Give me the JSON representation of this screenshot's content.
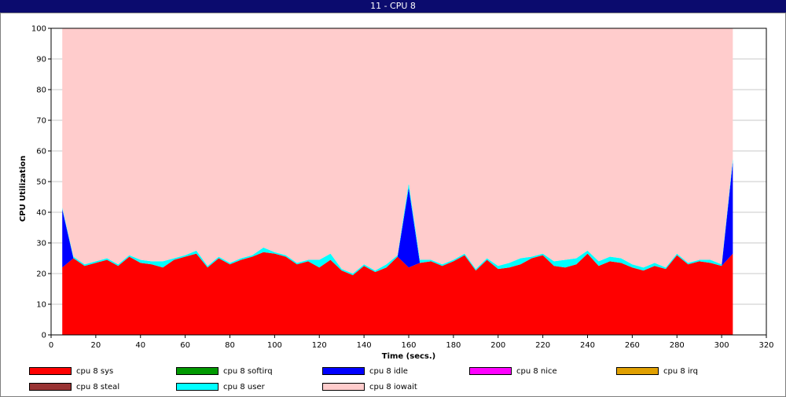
{
  "window": {
    "title": "11 - CPU 8"
  },
  "chart_data": {
    "type": "area",
    "stacked": true,
    "xlabel": "Time (secs.)",
    "ylabel": "CPU Utilization",
    "xlim": [
      0,
      320
    ],
    "ylim": [
      0,
      100
    ],
    "xticks": [
      0,
      20,
      40,
      60,
      80,
      100,
      120,
      140,
      160,
      180,
      200,
      220,
      240,
      260,
      280,
      300,
      320
    ],
    "yticks": [
      0,
      10,
      20,
      30,
      40,
      50,
      60,
      70,
      80,
      90,
      100
    ],
    "grid": "horizontal",
    "legend_position": "bottom",
    "x": [
      5,
      10,
      15,
      20,
      25,
      30,
      35,
      40,
      45,
      50,
      55,
      60,
      65,
      70,
      75,
      80,
      85,
      90,
      95,
      100,
      105,
      110,
      115,
      120,
      125,
      130,
      135,
      140,
      145,
      150,
      155,
      160,
      165,
      170,
      175,
      180,
      185,
      190,
      195,
      200,
      205,
      210,
      215,
      220,
      225,
      230,
      235,
      240,
      245,
      250,
      255,
      260,
      265,
      270,
      275,
      280,
      285,
      290,
      295,
      300,
      305
    ],
    "series": [
      {
        "name": "cpu 8 sys",
        "color": "#ff0000",
        "values": [
          22,
          25,
          22.5,
          23.5,
          24.5,
          22.5,
          25.5,
          23.5,
          23,
          22,
          24.5,
          25.5,
          26.5,
          22,
          25,
          23,
          24.5,
          25.5,
          27,
          26.5,
          25.5,
          23,
          24,
          22,
          24.5,
          21,
          19.5,
          22.5,
          20.5,
          22,
          25.5,
          22,
          23.5,
          24,
          22.5,
          24,
          26,
          21,
          24.5,
          21.5,
          22,
          23,
          25,
          26,
          22.5,
          22,
          23,
          26.5,
          22.5,
          24,
          23.5,
          22,
          21,
          22.5,
          21.5,
          26,
          23,
          24,
          23.5,
          22.5,
          26.5
        ]
      },
      {
        "name": "cpu 8 softirq",
        "color": "#009900",
        "values": [
          0,
          0,
          0,
          0,
          0,
          0,
          0,
          0,
          0,
          0,
          0,
          0,
          0,
          0,
          0,
          0,
          0,
          0,
          0,
          0,
          0,
          0,
          0,
          0,
          0,
          0,
          0,
          0,
          0,
          0,
          0,
          0,
          0,
          0,
          0,
          0,
          0,
          0,
          0,
          0,
          0,
          0,
          0,
          0,
          0,
          0,
          0,
          0,
          0,
          0,
          0,
          0,
          0,
          0,
          0,
          0,
          0,
          0,
          0,
          0,
          0
        ]
      },
      {
        "name": "cpu 8 idle",
        "color": "#0000ff",
        "values": [
          19,
          0,
          0,
          0,
          0,
          0,
          0,
          0,
          0,
          0,
          0,
          0,
          0,
          0,
          0,
          0,
          0,
          0,
          0,
          0,
          0,
          0,
          0,
          0,
          0,
          0,
          0,
          0,
          0,
          0,
          0,
          26,
          0,
          0,
          0,
          0,
          0,
          0,
          0,
          0,
          0,
          0,
          0,
          0,
          0,
          0,
          0,
          0,
          0,
          0,
          0,
          0,
          0,
          0,
          0,
          0,
          0,
          0,
          0,
          0,
          30
        ]
      },
      {
        "name": "cpu 8 nice",
        "color": "#ff00ff",
        "values": [
          0,
          0,
          0,
          0,
          0,
          0,
          0,
          0,
          0,
          0,
          0,
          0,
          0,
          0,
          0,
          0,
          0,
          0,
          0,
          0,
          0,
          0,
          0,
          0,
          0,
          0,
          0,
          0,
          0,
          0,
          0,
          0,
          0,
          0,
          0,
          0,
          0,
          0,
          0,
          0,
          0,
          0,
          0,
          0,
          0,
          0,
          0,
          0,
          0,
          0,
          0,
          0,
          0,
          0,
          0,
          0,
          0,
          0,
          0,
          0,
          0
        ]
      },
      {
        "name": "cpu 8 irq",
        "color": "#e0a000",
        "values": [
          0,
          0,
          0,
          0,
          0,
          0,
          0,
          0,
          0,
          0,
          0,
          0,
          0,
          0,
          0,
          0,
          0,
          0,
          0,
          0,
          0,
          0,
          0,
          0,
          0,
          0,
          0,
          0,
          0,
          0,
          0,
          0,
          0,
          0,
          0,
          0,
          0,
          0,
          0,
          0,
          0,
          0,
          0,
          0,
          0,
          0,
          0,
          0,
          0,
          0,
          0,
          0,
          0,
          0,
          0,
          0,
          0,
          0,
          0,
          0,
          0
        ]
      },
      {
        "name": "cpu 8 steal",
        "color": "#993333",
        "values": [
          0,
          0,
          0,
          0,
          0,
          0,
          0,
          0,
          0,
          0,
          0,
          0,
          0,
          0,
          0,
          0,
          0,
          0,
          0,
          0,
          0,
          0,
          0,
          0,
          0,
          0,
          0,
          0,
          0,
          0,
          0,
          0,
          0,
          0,
          0,
          0,
          0,
          0,
          0,
          0,
          0,
          0,
          0,
          0,
          0,
          0,
          0,
          0,
          0,
          0,
          0,
          0,
          0,
          0,
          0,
          0,
          0,
          0,
          0,
          0,
          0
        ]
      },
      {
        "name": "cpu 8 user",
        "color": "#00ffff",
        "values": [
          0.5,
          0.5,
          0.5,
          0.5,
          0.5,
          0.5,
          0.5,
          1,
          1,
          2,
          0.5,
          0.5,
          1,
          0.5,
          0.5,
          0.5,
          0.5,
          0.5,
          1.5,
          0.5,
          0.5,
          0.5,
          0.5,
          2.5,
          2,
          0.5,
          0.5,
          0.5,
          0.5,
          1,
          0.5,
          1.5,
          1,
          0.5,
          0.5,
          0.5,
          0.5,
          0.5,
          0.5,
          1,
          1.5,
          2,
          0.5,
          0.5,
          1.5,
          2.5,
          2,
          1,
          1.5,
          1.5,
          1.5,
          1,
          1,
          1,
          0.5,
          0.5,
          0.5,
          0.5,
          1,
          0.5,
          1
        ]
      },
      {
        "name": "cpu 8 iowait",
        "color": "#ffcccc",
        "values": [
          58.5,
          74.5,
          77,
          76,
          75,
          77,
          74,
          75.5,
          76,
          76,
          75,
          74,
          72.5,
          77.5,
          74.5,
          76.5,
          75,
          74,
          71.5,
          73,
          74,
          76.5,
          75.5,
          75.5,
          73.5,
          78.5,
          80,
          77,
          79,
          77,
          74,
          50.5,
          75.5,
          75.5,
          77,
          75.5,
          73.5,
          78.5,
          75,
          77.5,
          76.5,
          75,
          74.5,
          73.5,
          76,
          75.5,
          75,
          72.5,
          76,
          74.5,
          75,
          77,
          78,
          76.5,
          78,
          73.5,
          76.5,
          75.5,
          75.5,
          77,
          42.5
        ]
      }
    ]
  }
}
